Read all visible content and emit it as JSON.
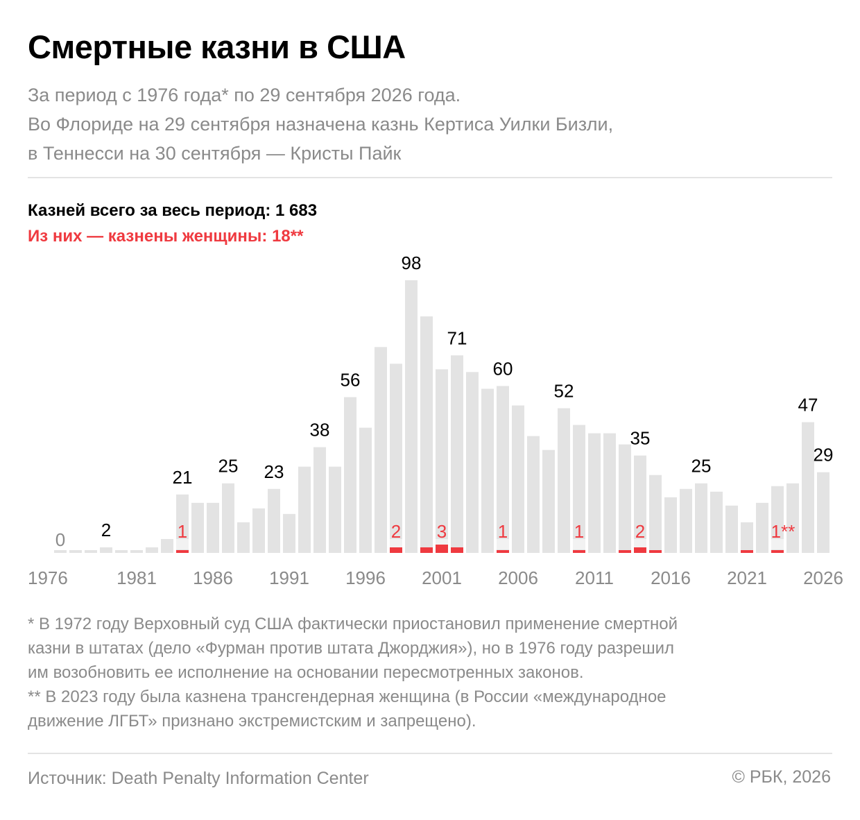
{
  "title": "Смертные казни в США",
  "subtitle": [
    "За период с 1976 года* по 29 сентября 2026 года.",
    "Во Флориде на 29 сентября назначена казнь Кертиса Уилки Бизли,",
    "в Теннесси на 30 сентября — Кристы Пайк"
  ],
  "totals": {
    "all": "Казней всего за весь период: 1 683",
    "women": "Из них — казнены женщины: 18**"
  },
  "colors": {
    "bar": "#e3e3e3",
    "women": "#ef3a40",
    "muted": "#8a8a8a",
    "text": "#000000"
  },
  "chart_data": {
    "type": "bar",
    "x": [
      1976,
      1977,
      1978,
      1979,
      1980,
      1981,
      1982,
      1983,
      1984,
      1985,
      1986,
      1987,
      1988,
      1989,
      1990,
      1991,
      1992,
      1993,
      1994,
      1995,
      1996,
      1997,
      1998,
      1999,
      2000,
      2001,
      2002,
      2003,
      2004,
      2005,
      2006,
      2007,
      2008,
      2009,
      2010,
      2011,
      2012,
      2013,
      2014,
      2015,
      2016,
      2017,
      2018,
      2019,
      2020,
      2021,
      2022,
      2023,
      2024,
      2025,
      2026
    ],
    "series": [
      {
        "values": [
          0,
          1,
          0,
          2,
          0,
          1,
          2,
          5,
          21,
          18,
          18,
          25,
          11,
          16,
          23,
          14,
          31,
          38,
          31,
          56,
          45,
          74,
          68,
          98,
          85,
          66,
          71,
          65,
          59,
          60,
          53,
          42,
          37,
          52,
          46,
          43,
          43,
          39,
          35,
          28,
          20,
          23,
          25,
          22,
          17,
          11,
          18,
          24,
          25,
          47,
          29
        ]
      },
      {
        "values": [
          0,
          0,
          0,
          0,
          0,
          0,
          0,
          0,
          1,
          0,
          0,
          0,
          0,
          0,
          0,
          0,
          0,
          0,
          0,
          0,
          0,
          0,
          2,
          0,
          2,
          3,
          2,
          0,
          0,
          1,
          0,
          0,
          0,
          0,
          1,
          0,
          0,
          1,
          2,
          1,
          0,
          0,
          0,
          0,
          0,
          1,
          0,
          1,
          0,
          0,
          0
        ]
      }
    ],
    "value_labels": [
      {
        "year": 1976,
        "text": "0"
      },
      {
        "year": 1979,
        "text": "2"
      },
      {
        "year": 1984,
        "text": "21"
      },
      {
        "year": 1987,
        "text": "25"
      },
      {
        "year": 1990,
        "text": "23"
      },
      {
        "year": 1993,
        "text": "38"
      },
      {
        "year": 1995,
        "text": "56"
      },
      {
        "year": 1999,
        "text": "98"
      },
      {
        "year": 2002,
        "text": "71"
      },
      {
        "year": 2005,
        "text": "60"
      },
      {
        "year": 2009,
        "text": "52"
      },
      {
        "year": 2014,
        "text": "35"
      },
      {
        "year": 2018,
        "text": "25"
      },
      {
        "year": 2025,
        "text": "47"
      },
      {
        "year": 2026,
        "text": "29"
      }
    ],
    "women_labels": [
      {
        "year": 1984,
        "text": "1"
      },
      {
        "year": 1998,
        "text": "2"
      },
      {
        "year": 2001,
        "text": "3"
      },
      {
        "year": 2005,
        "text": "1"
      },
      {
        "year": 2010,
        "text": "1"
      },
      {
        "year": 2014,
        "text": "2"
      },
      {
        "year": 2023,
        "text": "1**"
      }
    ],
    "x_ticks": [
      "1976",
      "1981",
      "1986",
      "1991",
      "1996",
      "2001",
      "2006",
      "2011",
      "2016",
      "2021",
      "2026"
    ],
    "ylim": [
      0,
      98
    ],
    "grid": false,
    "legend": "none"
  },
  "footnotes": [
    "* В 1972 году Верховный суд США фактически приостановил применение смертной",
    "казни в штатах (дело «Фурман против штата Джорджия»), но в 1976 году разрешил",
    "им возобновить ее исполнение на основании пересмотренных законов.",
    "** В 2023 году была казнена трансгендерная женщина (в России «международное",
    "движение ЛГБТ» признано экстремистским и запрещено)."
  ],
  "source": "Источник: Death Penalty Information Center",
  "copyright": "© РБК, 2026"
}
